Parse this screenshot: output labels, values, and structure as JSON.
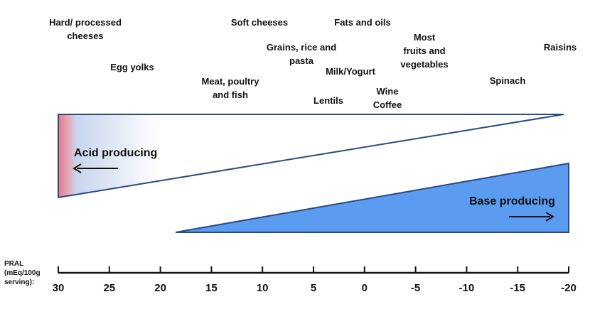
{
  "foods": [
    {
      "label": "Hard/ processed\ncheeses"
    },
    {
      "label": "Egg yolks"
    },
    {
      "label": "Meat, poultry\nand fish"
    },
    {
      "label": "Soft cheeses"
    },
    {
      "label": "Grains, rice and\npasta"
    },
    {
      "label": "Lentils"
    },
    {
      "label": "Milk/Yogurt"
    },
    {
      "label": "Fats and oils"
    },
    {
      "label": "Wine\nCoffee"
    },
    {
      "label": "Most\nfruits and\nvegetables"
    },
    {
      "label": "Spinach"
    },
    {
      "label": "Raisins"
    }
  ],
  "acid_label": "Acid producing",
  "base_label": "Base producing",
  "axis": {
    "title": "PRAL\n(mEq/100g\nserving):",
    "ticks": [
      "30",
      "25",
      "20",
      "15",
      "10",
      "5",
      "0",
      "-5",
      "-10",
      "-15",
      "-20"
    ]
  },
  "colors": {
    "acid_edge": "#e07a8a",
    "acid_fill": "#c9d6ee",
    "base_fill": "#5b9bf0",
    "outline": "#2b4a80"
  }
}
